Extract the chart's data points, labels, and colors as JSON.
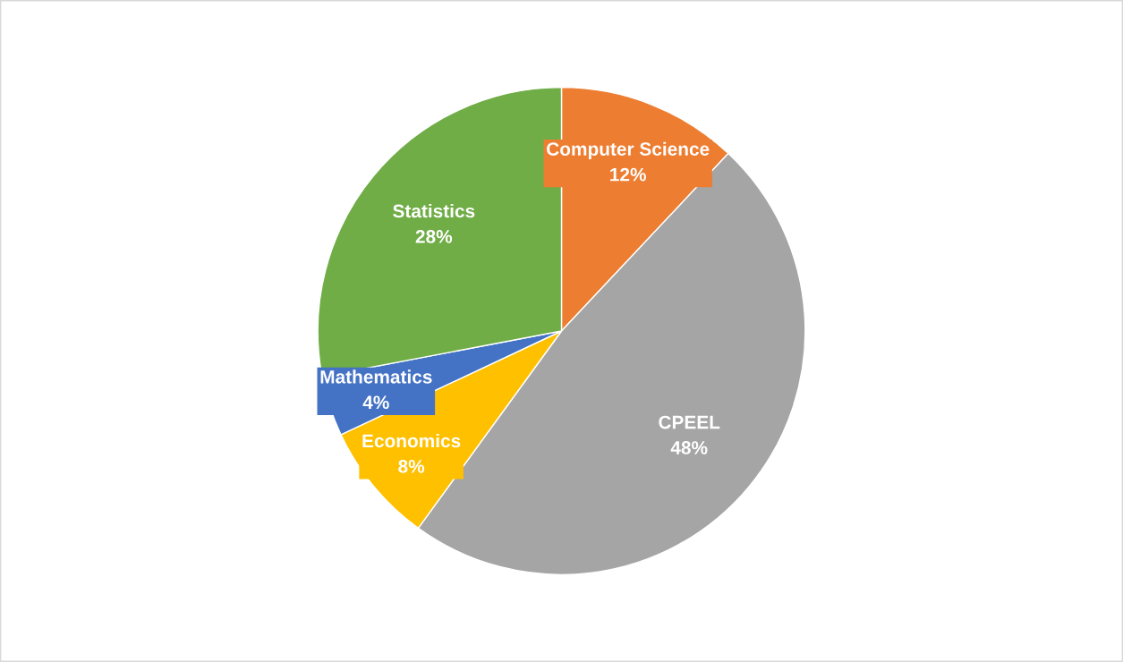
{
  "chart_data": {
    "type": "pie",
    "categories": [
      "Computer Science",
      "CPEEL",
      "Economics",
      "Mathematics",
      "Statistics"
    ],
    "values": [
      12,
      48,
      8,
      4,
      28
    ],
    "value_labels": [
      "12%",
      "48%",
      "8%",
      "4%",
      "28%"
    ],
    "colors": [
      "#ed7d31",
      "#a5a5a5",
      "#ffc000",
      "#4472c4",
      "#70ad47"
    ],
    "legend": false
  }
}
